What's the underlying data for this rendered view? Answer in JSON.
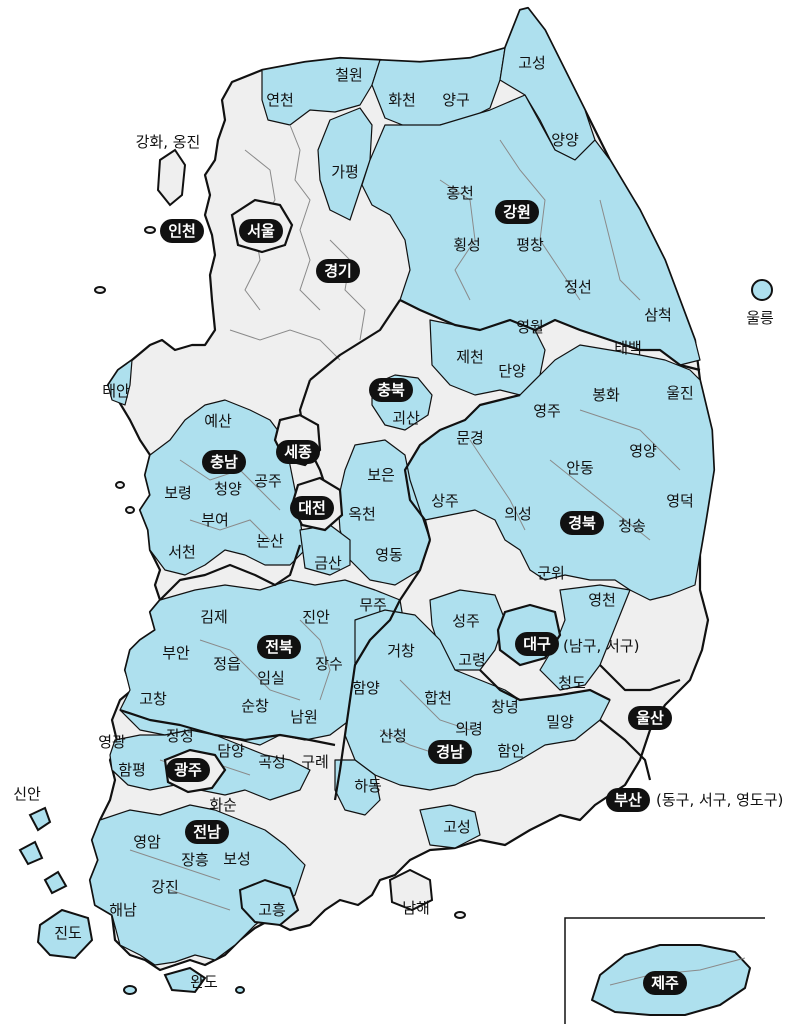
{
  "colors": {
    "highlight": "#aee0ee",
    "base": "#efefef",
    "border": "#111111",
    "inner_border": "#8a8a8a",
    "label_bg": "#111111",
    "label_text": "#ffffff"
  },
  "provinces": {
    "incheon": "인천",
    "seoul": "서울",
    "gyeonggi": "경기",
    "gangwon": "강원",
    "chungbuk": "충북",
    "chungnam": "충남",
    "sejong": "세종",
    "daejeon": "대전",
    "jeonbuk": "전북",
    "gwangju": "광주",
    "jeonnam": "전남",
    "gyeongbuk": "경북",
    "daegu": "대구",
    "gyeongnam": "경남",
    "ulsan": "울산",
    "busan": "부산",
    "jeju": "제주"
  },
  "notes": {
    "daegu": "(남구, 서구)",
    "busan": "(동구, 서구, 영도구)",
    "incheon_islands": "강화, 옹진"
  },
  "counties": {
    "cheorwon": "철원",
    "yeoncheon": "연천",
    "hwacheon": "화천",
    "yanggu": "양구",
    "goseong_gw": "고성",
    "yangyang": "양양",
    "gapyeong": "가평",
    "hongcheon": "홍천",
    "hoengseong": "횡성",
    "pyeongchang": "평창",
    "jeongseon": "정선",
    "samcheok": "삼척",
    "yeongwol": "영월",
    "taebaek": "태백",
    "ulleung": "울릉",
    "jecheon": "제천",
    "danyang": "단양",
    "goesan": "괴산",
    "boeun": "보은",
    "okcheon": "옥천",
    "yeongdong": "영동",
    "taean": "태안",
    "yesan": "예산",
    "boryeong": "보령",
    "cheongyang": "청양",
    "gongju": "공주",
    "buyeo": "부여",
    "seocheon": "서천",
    "nonsan": "논산",
    "geumsan": "금산",
    "yeongju": "영주",
    "bonghwa": "봉화",
    "uljin": "울진",
    "mungyeong": "문경",
    "andong": "안동",
    "yeongyang": "영양",
    "sangju": "상주",
    "uiseong": "의성",
    "cheongsong": "청송",
    "yeongdeok": "영덕",
    "gunwi": "군위",
    "yeongcheon": "영천",
    "seongju": "성주",
    "goryeong": "고령",
    "cheongdo": "청도",
    "gimje": "김제",
    "jinan": "진안",
    "muju": "무주",
    "buan": "부안",
    "jeongeup": "정읍",
    "jangsu": "장수",
    "imsil": "임실",
    "gochang": "고창",
    "sunchang": "순창",
    "namwon": "남원",
    "geochang": "거창",
    "hamyang": "함양",
    "hapcheon": "합천",
    "changnyeong": "창녕",
    "miryang": "밀양",
    "uiryeong": "의령",
    "sancheong": "산청",
    "haman": "함안",
    "hadong": "하동",
    "goseong_gn": "고성",
    "namhae": "남해",
    "yeonggwang": "영광",
    "jangseong": "장성",
    "damyang": "담양",
    "hampyeong": "함평",
    "gokseong": "곡성",
    "gurye": "구례",
    "hwasun": "화순",
    "sinan": "신안",
    "yeongam": "영암",
    "jangheung": "장흥",
    "boseong": "보성",
    "gangjin": "강진",
    "haenam": "해남",
    "goheung": "고흥",
    "jindo": "진도",
    "wando": "완도"
  }
}
